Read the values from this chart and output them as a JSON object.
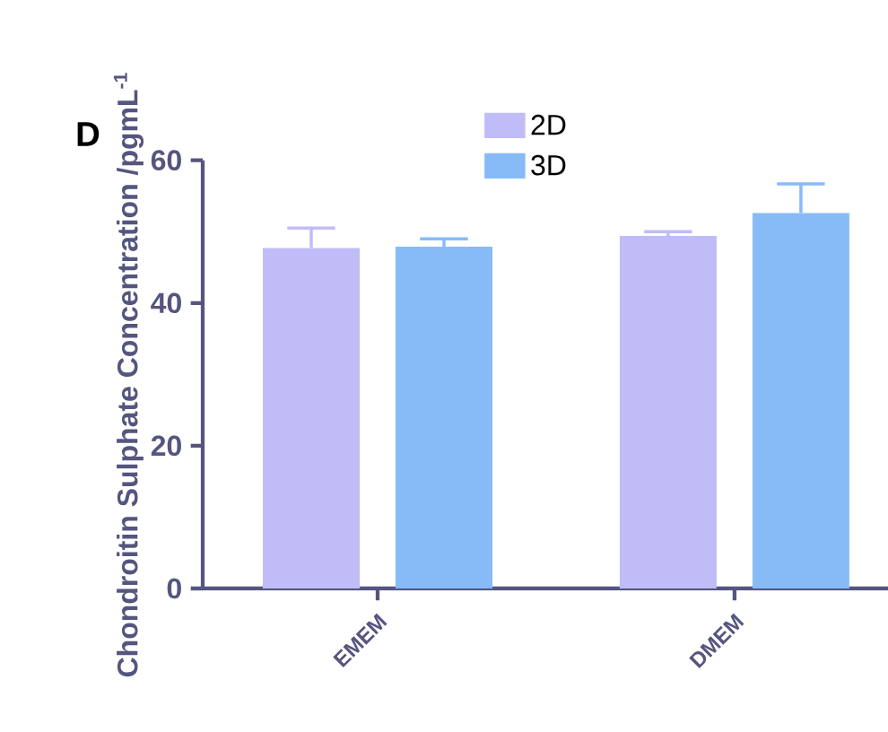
{
  "chart_data": {
    "type": "bar",
    "ylabel": "Chondroitin Sulphate Concentration /pgmL$^{-1}$",
    "annotations": [
      "D"
    ],
    "categories": [
      "EMEM",
      "DMEM"
    ],
    "series": [
      {
        "name": "2D",
        "color": "#c0bcf8",
        "values": [
          47.7,
          49.4
        ],
        "errors": [
          2.8,
          0.6
        ]
      },
      {
        "name": "3D",
        "color": "#86bbf8",
        "values": [
          47.9,
          52.6
        ],
        "errors": [
          1.1,
          4.1
        ]
      }
    ],
    "ylim": [
      0,
      60
    ],
    "yticks": [
      0,
      20,
      40,
      60
    ],
    "grid": false,
    "legend": "top"
  }
}
